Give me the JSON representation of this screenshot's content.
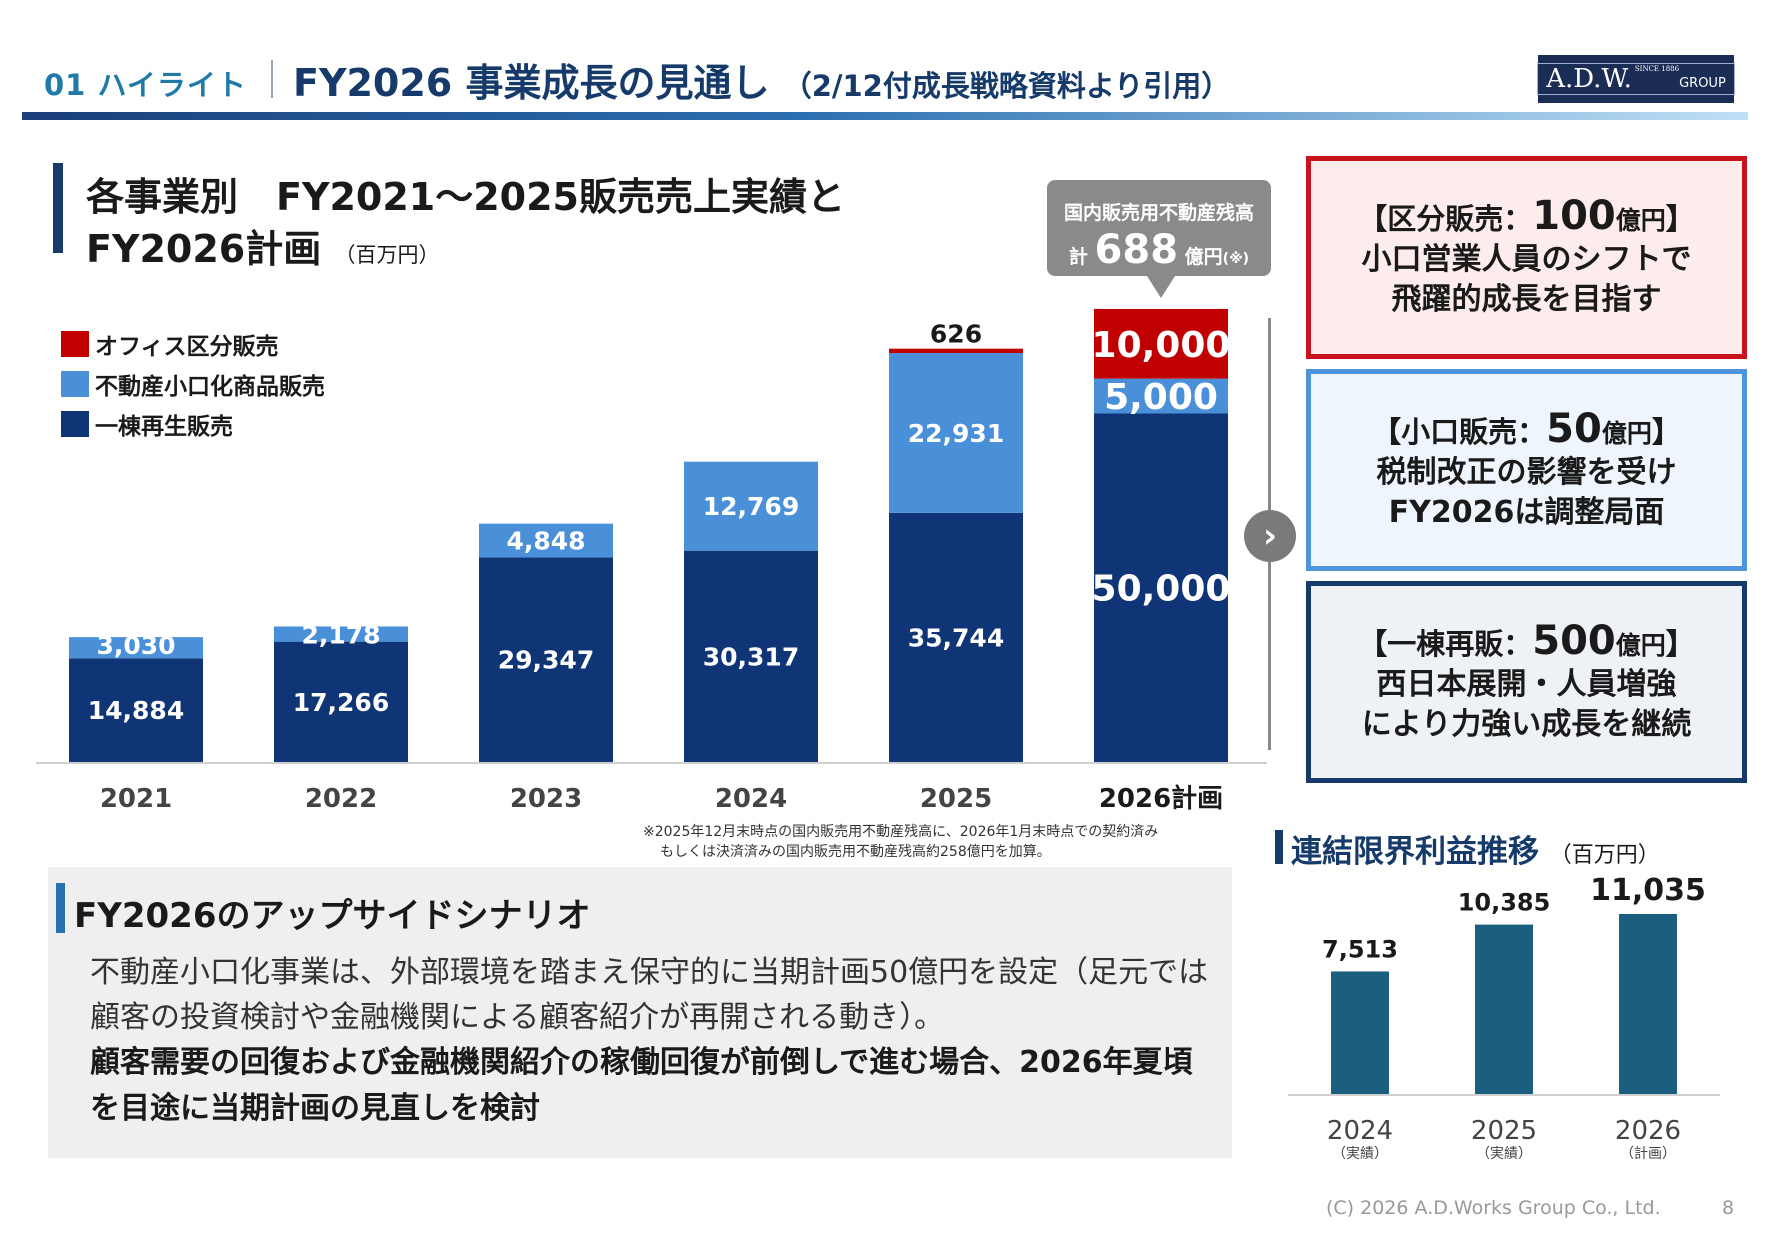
{
  "header": {
    "section": "01 ハイライト",
    "title": "FY2026 事業成長の見通し",
    "subtitle": "（2/12付成長戦略資料より引用）",
    "logo_main": "A.D.W.",
    "logo_since": "SINCE 1886",
    "logo_group": "GROUP"
  },
  "chart_heading": {
    "line1": "各事業別　FY2021～2025販売売上実績と",
    "line2": "FY2026計画",
    "unit": "（百万円）"
  },
  "legend": [
    {
      "label": "オフィス区分販売",
      "color": "#c00000"
    },
    {
      "label": "不動産小口化商品販売",
      "color": "#4a90d9"
    },
    {
      "label": "一棟再生販売",
      "color": "#0f3576"
    }
  ],
  "chart_data": [
    {
      "type": "bar",
      "stacked": true,
      "title": "各事業別 FY2021～2025販売売上実績とFY2026計画",
      "unit": "百万円",
      "categories": [
        "2021",
        "2022",
        "2023",
        "2024",
        "2025",
        "2026計画"
      ],
      "series": [
        {
          "name": "一棟再生販売",
          "color": "#0f3576",
          "values": [
            14884,
            17266,
            29347,
            30317,
            35744,
            50000
          ],
          "labels": [
            "14,884",
            "17,266",
            "29,347",
            "30,317",
            "35,744",
            "50,000"
          ]
        },
        {
          "name": "不動産小口化商品販売",
          "color": "#4a90d9",
          "values": [
            3030,
            2178,
            4848,
            12769,
            22931,
            5000
          ],
          "labels": [
            "3,030",
            "2,178",
            "4,848",
            "12,769",
            "22,931",
            "5,000"
          ]
        },
        {
          "name": "オフィス区分販売",
          "color": "#c00000",
          "values": [
            0,
            0,
            0,
            0,
            626,
            10000
          ],
          "labels": [
            "",
            "",
            "",
            "",
            "626",
            "10,000"
          ]
        }
      ],
      "ylim": [
        0,
        65000
      ]
    },
    {
      "type": "bar",
      "title": "連結限界利益推移",
      "unit": "百万円",
      "categories": [
        "2024",
        "2025",
        "2026"
      ],
      "category_notes": [
        "（実績）",
        "（実績）",
        "（計画）"
      ],
      "values": [
        7513,
        10385,
        11035
      ],
      "labels": [
        "7,513",
        "10,385",
        "11,035"
      ],
      "color": "#1a5f80",
      "ylim": [
        0,
        11035
      ]
    }
  ],
  "callout": {
    "line1": "国内販売用不動産残高",
    "prefix": "計",
    "value": "688",
    "suffix": "億円",
    "note": "(※)"
  },
  "arrow_glyph": "›",
  "footnote": {
    "line1": "※2025年12月末時点の国内販売用不動産残高に、2026年1月末時点での契約済み",
    "line2": "もしくは決済済みの国内販売用不動産残高約258億円を加算。"
  },
  "boxes": [
    {
      "open": "【区分販売：",
      "num": "100",
      "unit": "億円",
      "close": "】",
      "line1": "小口営業人員のシフトで",
      "line2": "飛躍的成長を目指す"
    },
    {
      "open": "【小口販売：",
      "num": "50",
      "unit": "億円",
      "close": "】",
      "line1": "税制改正の影響を受け",
      "line2": "FY2026は調整局面"
    },
    {
      "open": "【一棟再販：",
      "num": "500",
      "unit": "億円",
      "close": "】",
      "line1": "西日本展開・人員増強",
      "line2": "により力強い成長を継続"
    }
  ],
  "upside": {
    "title": "FY2026のアップサイドシナリオ",
    "para1": "不動産小口化事業は、外部環境を踏まえ保守的に当期計画50億円を設定（足元では顧客の投資検討や金融機関による顧客紹介が再開される動き）。",
    "para2": "顧客需要の回復および金融機関紹介の稼働回復が前倒しで進む場合、2026年夏頃を目途に当期計画の見直しを検討"
  },
  "small_chart": {
    "title": "連結限界利益推移",
    "unit": "（百万円）"
  },
  "footer": {
    "copyright": "(C) 2026  A.D.Works Group Co., Ltd.",
    "page": "8"
  }
}
